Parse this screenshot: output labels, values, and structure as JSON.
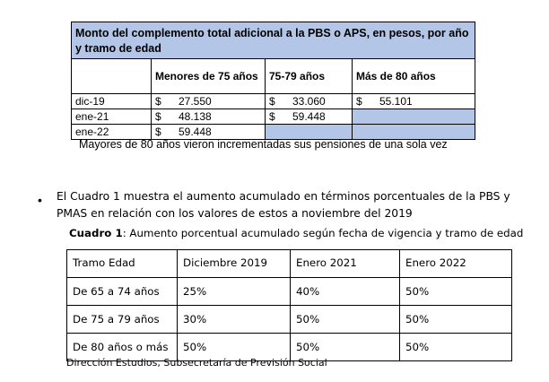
{
  "table1": {
    "title": "Monto del complemento total adicional a la PBS o APS, en pesos, por año y tramo de edad",
    "columns": [
      "Menores de 75 años",
      "75-79 años",
      "Más de 80 años"
    ],
    "rows": [
      {
        "label": "dic-19",
        "values": [
          {
            "sym": "$",
            "val": "27.550"
          },
          {
            "sym": "$",
            "val": "33.060"
          },
          {
            "sym": "$",
            "val": "55.101"
          }
        ]
      },
      {
        "label": "ene-21",
        "values": [
          {
            "sym": "$",
            "val": "48.138"
          },
          {
            "sym": "$",
            "val": "59.448"
          },
          {
            "sym": "",
            "val": ""
          }
        ]
      },
      {
        "label": "ene-22",
        "values": [
          {
            "sym": "$",
            "val": "59.448"
          },
          {
            "sym": "",
            "val": ""
          },
          {
            "sym": "",
            "val": ""
          }
        ]
      }
    ],
    "highlight_color": "#b3c6e7"
  },
  "note1": "Mayores de 80 años vieron incrementadas sus pensiones de una sola vez",
  "bullet": {
    "symbol": "•",
    "text": "El Cuadro 1 muestra el aumento acumulado en términos porcentuales de la PBS y PMAS en relación con los valores de estos a noviembre del 2019"
  },
  "cuadro1": {
    "title_bold": "Cuadro 1",
    "title_rest": ": Aumento porcentual acumulado según fecha de vigencia y tramo de edad",
    "headers": [
      "Tramo Edad",
      "Diciembre 2019",
      "Enero 2021",
      "Enero 2022"
    ],
    "rows": [
      [
        "De 65 a 74 años",
        "25%",
        "40%",
        "50%"
      ],
      [
        "De 75 a 79 años",
        "30%",
        "50%",
        "50%"
      ],
      [
        "De 80 años o más",
        "50%",
        "50%",
        "50%"
      ]
    ]
  },
  "source": "Dirección Estudios, Subsecretaría de Previsión Social"
}
